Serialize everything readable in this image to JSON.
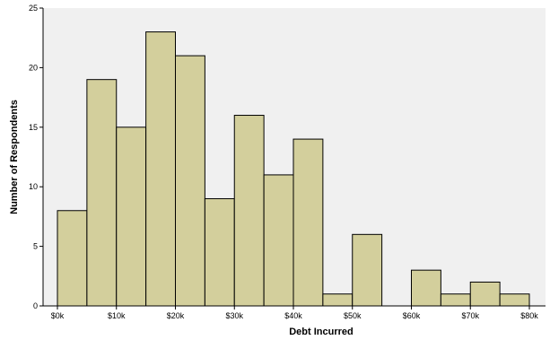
{
  "chart_data": {
    "type": "bar",
    "xlabel": "Debt Incurred",
    "ylabel": "Number of Respondents",
    "xlim": [
      0,
      80000
    ],
    "ylim": [
      0,
      25
    ],
    "x_ticks": [
      {
        "value": 0,
        "label": "$0k"
      },
      {
        "value": 10000,
        "label": "$10k"
      },
      {
        "value": 20000,
        "label": "$20k"
      },
      {
        "value": 30000,
        "label": "$30k"
      },
      {
        "value": 40000,
        "label": "$40k"
      },
      {
        "value": 50000,
        "label": "$50k"
      },
      {
        "value": 60000,
        "label": "$60k"
      },
      {
        "value": 70000,
        "label": "$70k"
      },
      {
        "value": 80000,
        "label": "$80k"
      }
    ],
    "y_ticks": [
      0,
      5,
      10,
      15,
      20,
      25
    ],
    "bin_width": 5000,
    "bins": [
      {
        "start": 0,
        "end": 5000,
        "count": 8
      },
      {
        "start": 5000,
        "end": 10000,
        "count": 19
      },
      {
        "start": 10000,
        "end": 15000,
        "count": 15
      },
      {
        "start": 15000,
        "end": 20000,
        "count": 23
      },
      {
        "start": 20000,
        "end": 25000,
        "count": 21
      },
      {
        "start": 25000,
        "end": 30000,
        "count": 9
      },
      {
        "start": 30000,
        "end": 35000,
        "count": 16
      },
      {
        "start": 35000,
        "end": 40000,
        "count": 11
      },
      {
        "start": 40000,
        "end": 45000,
        "count": 14
      },
      {
        "start": 45000,
        "end": 50000,
        "count": 1
      },
      {
        "start": 50000,
        "end": 55000,
        "count": 6
      },
      {
        "start": 55000,
        "end": 60000,
        "count": 0
      },
      {
        "start": 60000,
        "end": 65000,
        "count": 3
      },
      {
        "start": 65000,
        "end": 70000,
        "count": 1
      },
      {
        "start": 70000,
        "end": 75000,
        "count": 2
      },
      {
        "start": 75000,
        "end": 80000,
        "count": 1
      }
    ],
    "bar_color": "#d3cf9c",
    "plot_background": "#f0f0f0",
    "grid": false
  }
}
